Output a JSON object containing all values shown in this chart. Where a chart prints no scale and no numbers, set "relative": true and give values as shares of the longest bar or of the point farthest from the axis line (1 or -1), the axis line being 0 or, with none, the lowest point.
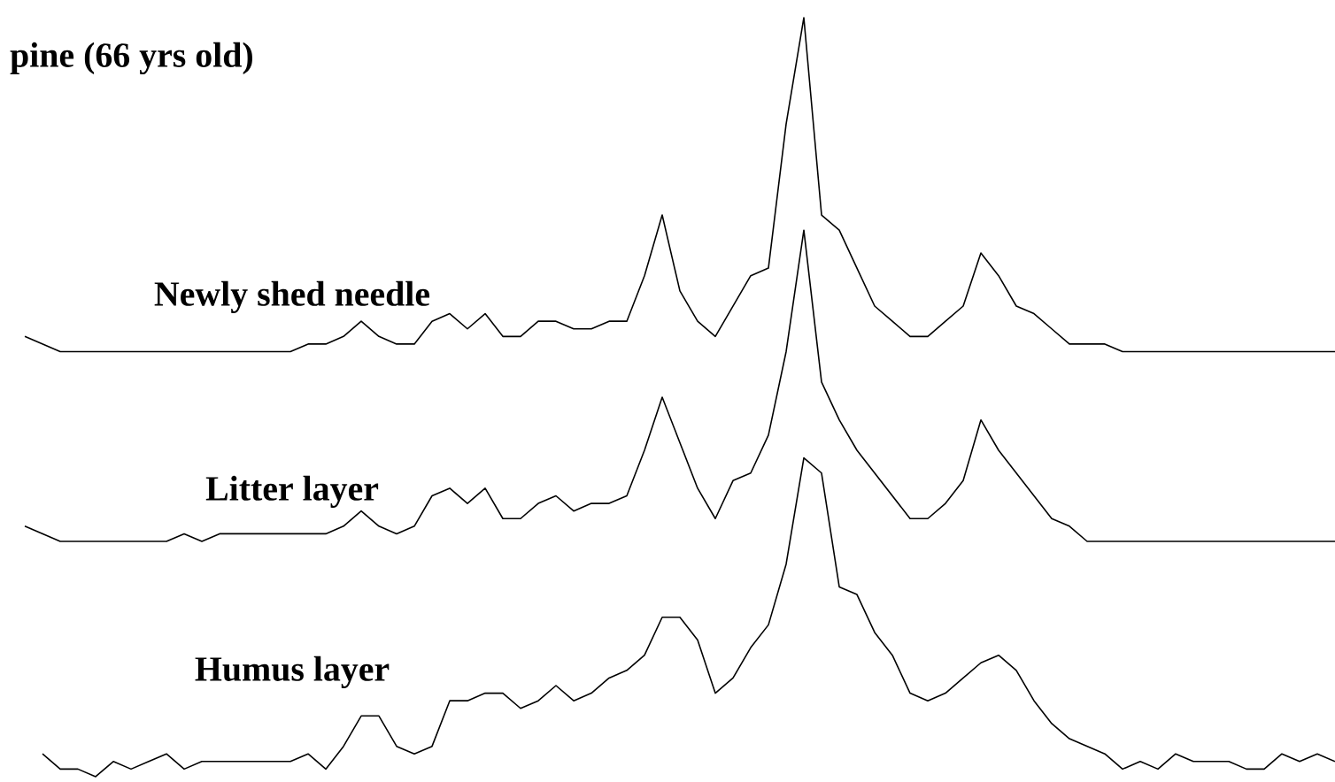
{
  "chart_data": {
    "type": "line",
    "title": "pine (66 yrs  old)",
    "relative": true,
    "marker": "none",
    "line_style": "solid",
    "categories": [
      null,
      null,
      null,
      null,
      null,
      null,
      null,
      null,
      null,
      null,
      null,
      null,
      null,
      null,
      null,
      null,
      null,
      null,
      null,
      null,
      null,
      null,
      null,
      null,
      null,
      null,
      null,
      null,
      null,
      null,
      null,
      null,
      null,
      null,
      null,
      null,
      null,
      null,
      null,
      null,
      null,
      null,
      null,
      null,
      null,
      null,
      null,
      null,
      null,
      null,
      null,
      null,
      null,
      null,
      null,
      null,
      null,
      null,
      null,
      null,
      null,
      null,
      null,
      null,
      null,
      null,
      null,
      null,
      null,
      null,
      null,
      null,
      null,
      null,
      null
    ],
    "series": [
      {
        "name": "Newly shed needle",
        "color": "#000000",
        "values": [
          0.58,
          0.57,
          0.56,
          0.56,
          0.56,
          0.56,
          0.56,
          0.56,
          0.56,
          0.56,
          0.56,
          0.56,
          0.56,
          0.56,
          0.56,
          0.56,
          0.57,
          0.57,
          0.58,
          0.6,
          0.58,
          0.57,
          0.57,
          0.6,
          0.61,
          0.59,
          0.61,
          0.58,
          0.58,
          0.6,
          0.6,
          0.59,
          0.59,
          0.6,
          0.6,
          0.66,
          0.74,
          0.64,
          0.6,
          0.58,
          0.62,
          0.66,
          0.67,
          0.86,
          1,
          0.74,
          0.72,
          0.67,
          0.62,
          0.6,
          0.58,
          0.58,
          0.6,
          0.62,
          0.69,
          0.66,
          0.62,
          0.61,
          0.59,
          0.57,
          0.57,
          0.57,
          0.56,
          0.56,
          0.56,
          0.56,
          0.56,
          0.56,
          0.56,
          0.56,
          0.56,
          0.56,
          0.56,
          0.56,
          0.56
        ]
      },
      {
        "name": "Litter layer",
        "color": "#000000",
        "values": [
          0.33,
          0.32,
          0.31,
          0.31,
          0.31,
          0.31,
          0.31,
          0.31,
          0.31,
          0.32,
          0.31,
          0.32,
          0.32,
          0.32,
          0.32,
          0.32,
          0.32,
          0.32,
          0.33,
          0.35,
          0.33,
          0.32,
          0.33,
          0.37,
          0.38,
          0.36,
          0.38,
          0.34,
          0.34,
          0.36,
          0.37,
          0.35,
          0.36,
          0.36,
          0.37,
          0.43,
          0.5,
          0.44,
          0.38,
          0.34,
          0.39,
          0.4,
          0.45,
          0.56,
          0.72,
          0.52,
          0.47,
          0.43,
          0.4,
          0.37,
          0.34,
          0.34,
          0.36,
          0.39,
          0.47,
          0.43,
          0.4,
          0.37,
          0.34,
          0.33,
          0.31,
          0.31,
          0.31,
          0.31,
          0.31,
          0.31,
          0.31,
          0.31,
          0.31,
          0.31,
          0.31,
          0.31,
          0.31,
          0.31,
          0.31
        ]
      },
      {
        "name": "Humus layer",
        "color": "#000000",
        "values": [
          null,
          0.03,
          0.01,
          0.01,
          0,
          0.02,
          0.01,
          0.02,
          0.03,
          0.01,
          0.02,
          0.02,
          0.02,
          0.02,
          0.02,
          0.02,
          0.03,
          0.01,
          0.04,
          0.08,
          0.08,
          0.04,
          0.03,
          0.04,
          0.1,
          0.1,
          0.11,
          0.11,
          0.09,
          0.1,
          0.12,
          0.1,
          0.11,
          0.13,
          0.14,
          0.16,
          0.21,
          0.21,
          0.18,
          0.11,
          0.13,
          0.17,
          0.2,
          0.28,
          0.42,
          0.4,
          0.25,
          0.24,
          0.19,
          0.16,
          0.11,
          0.1,
          0.11,
          0.13,
          0.15,
          0.16,
          0.14,
          0.1,
          0.07,
          0.05,
          0.04,
          0.03,
          0.01,
          0.02,
          0.01,
          0.03,
          0.02,
          0.02,
          0.02,
          0.01,
          0.01,
          0.03,
          0.02,
          0.03,
          0.02
        ]
      }
    ]
  }
}
